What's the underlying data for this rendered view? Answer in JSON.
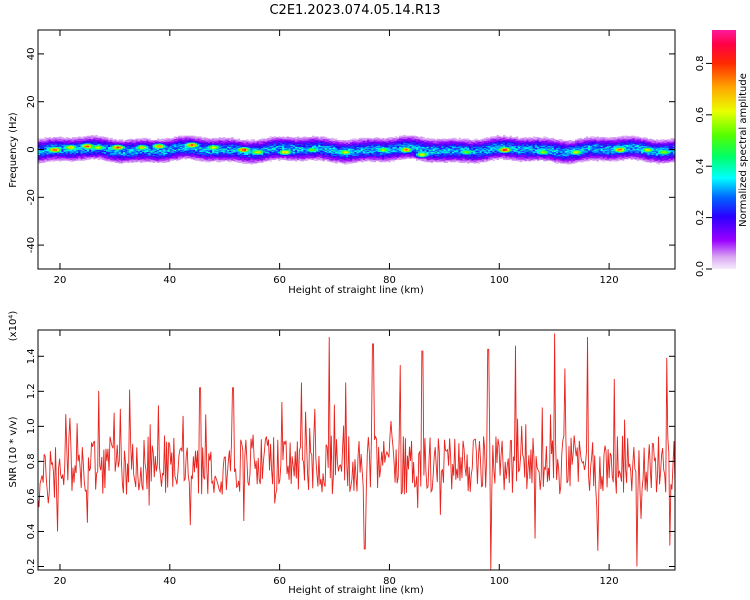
{
  "title": "C2E1.2023.074.05.14.R13",
  "colors": {
    "snr_line": "#e8221c",
    "axes": "#000000",
    "background": "#ffffff"
  },
  "colorbar": {
    "label": "Normalized spectral amplitude",
    "ticks": [
      "0.0",
      "0.2",
      "0.4",
      "0.6",
      "0.8"
    ],
    "range": [
      0,
      0.93
    ],
    "colormap": "hsv-like: white/lavender → violet → blue → cyan → green → yellow → orange → red → magenta"
  },
  "chart_data": [
    {
      "type": "heatmap",
      "xlabel": "Height of straight line (km)",
      "ylabel": "Frequency (Hz)",
      "xlim": [
        16,
        132
      ],
      "ylim": [
        -50,
        50
      ],
      "x_ticks": [
        "20",
        "40",
        "60",
        "80",
        "100",
        "120"
      ],
      "y_ticks": [
        "-40",
        "-20",
        "0",
        "20",
        "40"
      ],
      "band_center_hz": 0,
      "band_halfwidth_hz": 4,
      "peaks": [
        {
          "x": 19,
          "y": 0,
          "amp": 0.9
        },
        {
          "x": 22,
          "y": 1,
          "amp": 0.75
        },
        {
          "x": 25,
          "y": 1.5,
          "amp": 0.85
        },
        {
          "x": 27,
          "y": 1,
          "amp": 0.7
        },
        {
          "x": 30.5,
          "y": 1,
          "amp": 0.85
        },
        {
          "x": 35,
          "y": 1,
          "amp": 0.7
        },
        {
          "x": 38,
          "y": 1.5,
          "amp": 0.8
        },
        {
          "x": 44,
          "y": 2,
          "amp": 0.85
        },
        {
          "x": 48,
          "y": 1,
          "amp": 0.7
        },
        {
          "x": 53.5,
          "y": 0,
          "amp": 0.9
        },
        {
          "x": 56,
          "y": -1,
          "amp": 0.7
        },
        {
          "x": 61,
          "y": -1,
          "amp": 0.75
        },
        {
          "x": 66,
          "y": 0,
          "amp": 0.6
        },
        {
          "x": 72,
          "y": -1,
          "amp": 0.7
        },
        {
          "x": 79,
          "y": 0,
          "amp": 0.65
        },
        {
          "x": 83,
          "y": 0,
          "amp": 0.8
        },
        {
          "x": 86,
          "y": -2,
          "amp": 0.7
        },
        {
          "x": 94,
          "y": -1,
          "amp": 0.6
        },
        {
          "x": 101,
          "y": 0,
          "amp": 0.92
        },
        {
          "x": 108,
          "y": -1,
          "amp": 0.65
        },
        {
          "x": 114,
          "y": -1,
          "amp": 0.7
        },
        {
          "x": 122,
          "y": 0,
          "amp": 0.85
        },
        {
          "x": 127,
          "y": 0,
          "amp": 0.7
        },
        {
          "x": 130,
          "y": -1,
          "amp": 0.65
        }
      ]
    },
    {
      "type": "line",
      "xlabel": "Height of straight line (km)",
      "ylabel": "SNR (10 * v/v)",
      "y_multiplier": "(x10⁴)",
      "xlim": [
        16,
        132
      ],
      "ylim": [
        0.18,
        1.55
      ],
      "x_ticks": [
        "20",
        "40",
        "60",
        "80",
        "100",
        "120"
      ],
      "y_ticks": [
        "0.2",
        "0.4",
        "0.6",
        "0.8",
        "1.0",
        "1.2",
        "1.4"
      ],
      "series": [
        {
          "x_start": 16,
          "x_end": 132,
          "mean": 0.78,
          "spread": 0.17,
          "points": 620,
          "spikes": [
            {
              "x": 19.5,
              "y": 0.4
            },
            {
              "x": 21,
              "y": 1.07
            },
            {
              "x": 25,
              "y": 0.45
            },
            {
              "x": 31,
              "y": 1.1
            },
            {
              "x": 38,
              "y": 1.12
            },
            {
              "x": 45.5,
              "y": 1.22
            },
            {
              "x": 51.5,
              "y": 1.22
            },
            {
              "x": 53.5,
              "y": 0.46
            },
            {
              "x": 64,
              "y": 1.25
            },
            {
              "x": 69,
              "y": 1.51
            },
            {
              "x": 72,
              "y": 1.25
            },
            {
              "x": 75.5,
              "y": 0.3
            },
            {
              "x": 77,
              "y": 1.47
            },
            {
              "x": 82,
              "y": 1.35
            },
            {
              "x": 86,
              "y": 1.43
            },
            {
              "x": 98,
              "y": 1.44
            },
            {
              "x": 98.5,
              "y": 0.18
            },
            {
              "x": 103,
              "y": 1.46
            },
            {
              "x": 106.5,
              "y": 0.36
            },
            {
              "x": 110,
              "y": 1.53
            },
            {
              "x": 112,
              "y": 1.33
            },
            {
              "x": 116,
              "y": 1.51
            },
            {
              "x": 118,
              "y": 0.29
            },
            {
              "x": 121,
              "y": 1.27
            },
            {
              "x": 125,
              "y": 0.2
            },
            {
              "x": 130.5,
              "y": 1.39
            },
            {
              "x": 131,
              "y": 0.32
            }
          ]
        }
      ]
    }
  ]
}
